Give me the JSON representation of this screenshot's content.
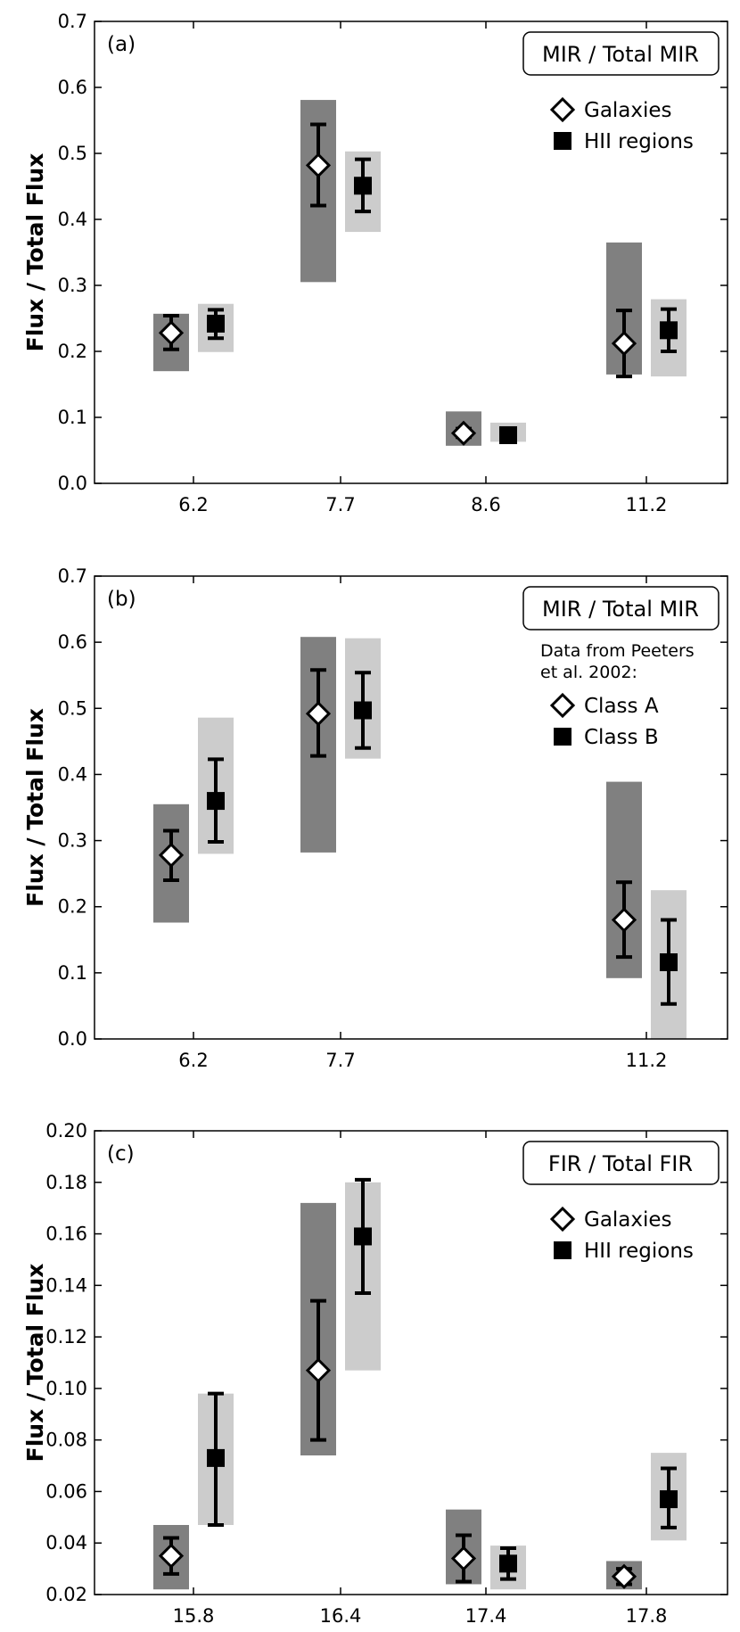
{
  "chart_data": [
    {
      "type": "scatter",
      "panel_label": "(a)",
      "title": "MIR / Total MIR",
      "ylabel": "Flux / Total Flux",
      "ylim": [
        0.0,
        0.7
      ],
      "yticks": [
        "0.0",
        "0.1",
        "0.2",
        "0.3",
        "0.4",
        "0.5",
        "0.6",
        "0.7"
      ],
      "categories": [
        "6.2",
        "7.7",
        "8.6",
        "11.2"
      ],
      "legend_note": [],
      "series": [
        {
          "name": "Galaxies",
          "marker": "diamond",
          "values": [
            0.228,
            0.482,
            0.076,
            0.212
          ],
          "err_low": [
            0.203,
            0.421,
            0.07,
            0.162
          ],
          "err_high": [
            0.254,
            0.544,
            0.083,
            0.262
          ],
          "range_low": [
            0.17,
            0.305,
            0.057,
            0.165
          ],
          "range_high": [
            0.257,
            0.581,
            0.109,
            0.365
          ]
        },
        {
          "name": "HII regions",
          "marker": "square",
          "values": [
            0.242,
            0.451,
            0.073,
            0.232
          ],
          "err_low": [
            0.22,
            0.412,
            0.068,
            0.2
          ],
          "err_high": [
            0.263,
            0.491,
            0.078,
            0.264
          ],
          "range_low": [
            0.199,
            0.381,
            0.063,
            0.162
          ],
          "range_high": [
            0.272,
            0.503,
            0.092,
            0.279
          ]
        }
      ]
    },
    {
      "type": "scatter",
      "panel_label": "(b)",
      "title": "MIR / Total MIR",
      "ylabel": "Flux / Total Flux",
      "ylim": [
        0.0,
        0.7
      ],
      "yticks": [
        "0.0",
        "0.1",
        "0.2",
        "0.3",
        "0.4",
        "0.5",
        "0.6",
        "0.7"
      ],
      "categories": [
        "6.2",
        "7.7",
        "",
        "11.2"
      ],
      "legend_note": [
        "Data from Peeters",
        "et al. 2002:"
      ],
      "series": [
        {
          "name": "Class A",
          "marker": "diamond",
          "values": [
            0.278,
            0.492,
            null,
            0.18
          ],
          "err_low": [
            0.24,
            0.428,
            null,
            0.124
          ],
          "err_high": [
            0.315,
            0.558,
            null,
            0.237
          ],
          "range_low": [
            0.176,
            0.282,
            null,
            0.092
          ],
          "range_high": [
            0.355,
            0.608,
            null,
            0.389
          ]
        },
        {
          "name": "Class B",
          "marker": "square",
          "values": [
            0.36,
            0.497,
            null,
            0.116
          ],
          "err_low": [
            0.298,
            0.44,
            null,
            0.053
          ],
          "err_high": [
            0.423,
            0.554,
            null,
            0.18
          ],
          "range_low": [
            0.28,
            0.424,
            null,
            0.0
          ],
          "range_high": [
            0.486,
            0.606,
            null,
            0.225
          ]
        }
      ]
    },
    {
      "type": "scatter",
      "panel_label": "(c)",
      "title": "FIR / Total FIR",
      "ylabel": "Flux / Total Flux",
      "ylim": [
        0.02,
        0.2
      ],
      "yticks": [
        "0.02",
        "0.04",
        "0.06",
        "0.08",
        "0.10",
        "0.12",
        "0.14",
        "0.16",
        "0.18",
        "0.20"
      ],
      "categories": [
        "15.8",
        "16.4",
        "17.4",
        "17.8"
      ],
      "legend_note": [],
      "series": [
        {
          "name": "Galaxies",
          "marker": "diamond",
          "values": [
            0.035,
            0.107,
            0.034,
            0.027
          ],
          "err_low": [
            0.028,
            0.08,
            0.025,
            0.024
          ],
          "err_high": [
            0.042,
            0.134,
            0.043,
            0.03
          ],
          "range_low": [
            0.022,
            0.074,
            0.024,
            0.022
          ],
          "range_high": [
            0.047,
            0.172,
            0.053,
            0.033
          ]
        },
        {
          "name": "HII regions",
          "marker": "square",
          "values": [
            0.073,
            0.159,
            0.032,
            0.057
          ],
          "err_low": [
            0.047,
            0.137,
            0.026,
            0.046
          ],
          "err_high": [
            0.098,
            0.181,
            0.038,
            0.069
          ],
          "range_low": [
            0.047,
            0.107,
            0.022,
            0.041
          ],
          "range_high": [
            0.098,
            0.18,
            0.039,
            0.075
          ]
        }
      ]
    }
  ],
  "colors": {
    "galaxies_range": "#808080",
    "hii_range": "#cccccc",
    "errorbar": "#000000",
    "diamond_fill": "#ffffff",
    "square_fill": "#000000"
  }
}
